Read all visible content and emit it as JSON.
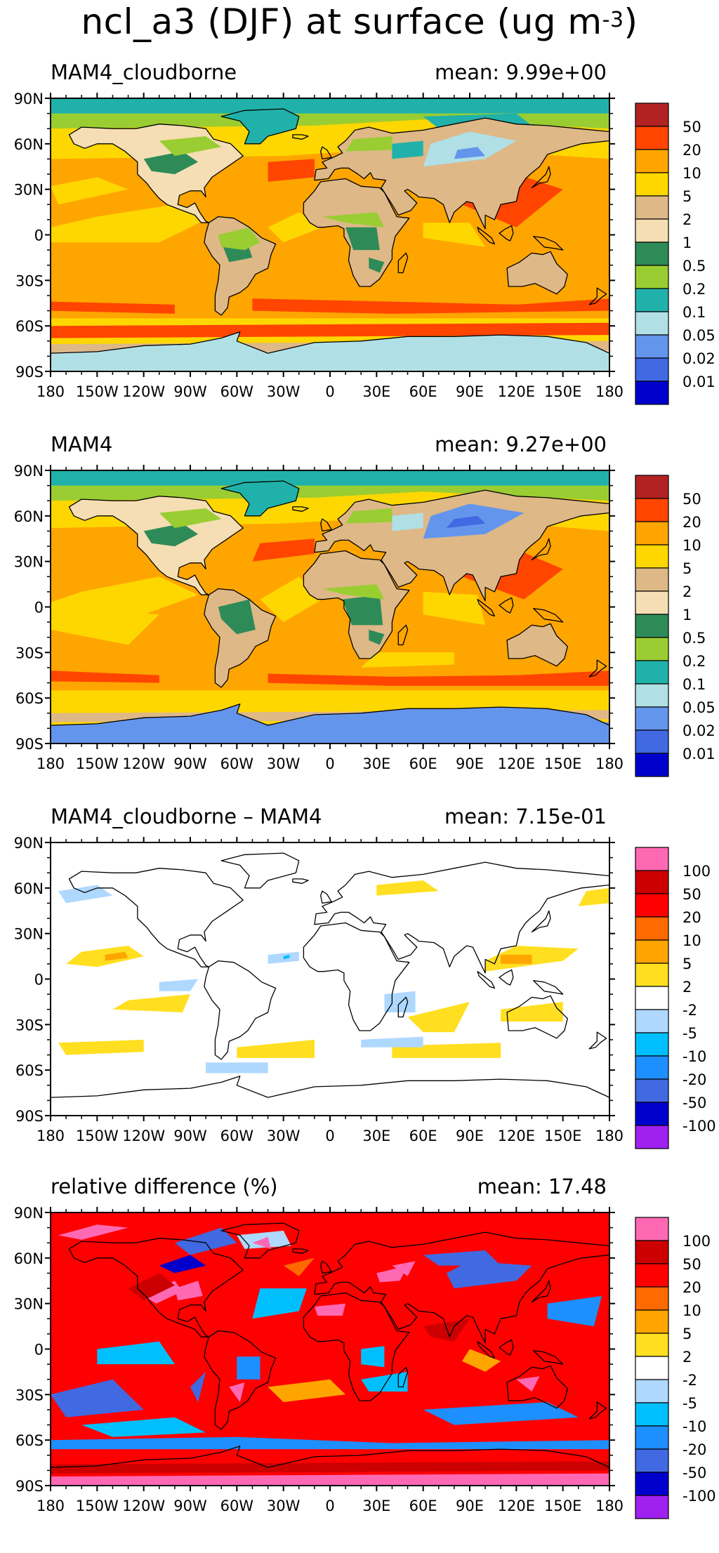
{
  "title": {
    "main": "ncl_a3 (DJF) at surface (ug m",
    "superscript": "-3",
    "close": ")"
  },
  "panels": [
    {
      "id": "p1",
      "name": "MAM4_cloudborne",
      "mean": "mean: 9.99e+00",
      "scale": "conc",
      "pattern": "conc_cb"
    },
    {
      "id": "p2",
      "name": "MAM4",
      "mean": "mean: 9.27e+00",
      "scale": "conc",
      "pattern": "conc_m4"
    },
    {
      "id": "p3",
      "name": "MAM4_cloudborne – MAM4",
      "mean": "mean: 7.15e-01",
      "scale": "diff",
      "pattern": "diff"
    },
    {
      "id": "p4",
      "name": "relative difference (%)",
      "mean": "mean: 17.48",
      "scale": "rel",
      "pattern": "rel"
    }
  ],
  "axes": {
    "lat_labels": [
      "90N",
      "60N",
      "30N",
      "0",
      "30S",
      "60S",
      "90S"
    ],
    "lon_labels": [
      "180",
      "150W",
      "120W",
      "90W",
      "60W",
      "30W",
      "0",
      "30E",
      "60E",
      "90E",
      "120E",
      "150E",
      "180"
    ]
  },
  "scales": {
    "conc": {
      "colors": [
        "#b22222",
        "#ff4500",
        "#ffa500",
        "#ffd700",
        "#deb887",
        "#f5deb3",
        "#2e8b57",
        "#9acd32",
        "#20b2aa",
        "#b0e0e6",
        "#6495ed",
        "#4169e1",
        "#0000cd"
      ],
      "labels": [
        "50",
        "20",
        "10",
        "5",
        "2",
        "1",
        "0.5",
        "0.2",
        "0.1",
        "0.05",
        "0.02",
        "0.01"
      ]
    },
    "diff": {
      "colors": [
        "#ff69b4",
        "#cc0000",
        "#ff0000",
        "#ff6a00",
        "#ffa500",
        "#ffdf20",
        "#ffffff",
        "#afd8ff",
        "#00bfff",
        "#1e8fff",
        "#4169e1",
        "#0000cd",
        "#a020f0"
      ],
      "labels": [
        "100",
        "50",
        "20",
        "10",
        "5",
        "2",
        "-2",
        "-5",
        "-10",
        "-20",
        "-50",
        "-100"
      ]
    },
    "rel": {
      "colors": [
        "#ff69b4",
        "#cc0000",
        "#ff0000",
        "#ff6a00",
        "#ffa500",
        "#ffdf20",
        "#ffffff",
        "#afd8ff",
        "#00bfff",
        "#1e8fff",
        "#4169e1",
        "#0000cd",
        "#a020f0"
      ],
      "labels": [
        "100",
        "50",
        "20",
        "10",
        "5",
        "2",
        "-2",
        "-5",
        "-10",
        "-20",
        "-50",
        "-100"
      ]
    }
  }
}
